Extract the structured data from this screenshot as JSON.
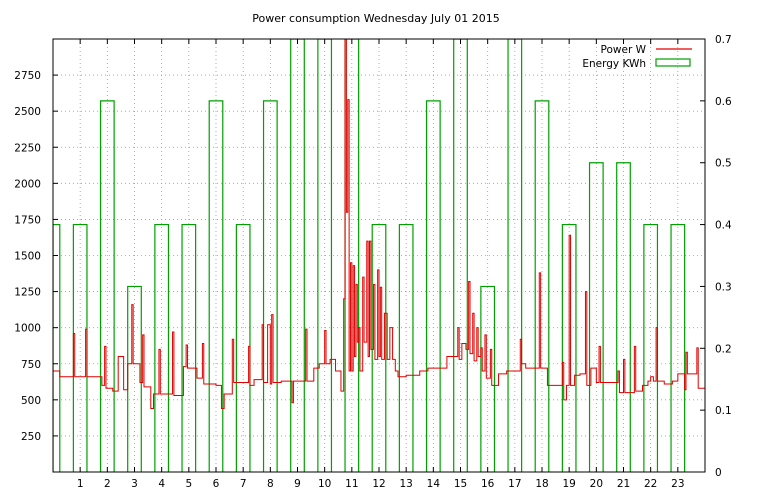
{
  "chart_data": {
    "type": "line",
    "title": "Power consumption Wednesday July 01 2015",
    "grid": true,
    "legend_position": "top-right",
    "x": {
      "range": [
        0,
        24
      ],
      "tick_values": [
        1,
        2,
        3,
        4,
        5,
        6,
        7,
        8,
        9,
        10,
        11,
        12,
        13,
        14,
        15,
        16,
        17,
        18,
        19,
        20,
        21,
        22,
        23
      ],
      "tick_labels": [
        "1",
        "2",
        "3",
        "4",
        "5",
        "6",
        "7",
        "8",
        "9",
        "10",
        "11",
        "12",
        "13",
        "14",
        "15",
        "16",
        "17",
        "18",
        "19",
        "20",
        "21",
        "22",
        "23"
      ]
    },
    "y_left": {
      "range": [
        0,
        3000
      ],
      "tick_values": [
        250,
        500,
        750,
        1000,
        1250,
        1500,
        1750,
        2000,
        2250,
        2500,
        2750
      ],
      "tick_labels": [
        "250",
        "500",
        "750",
        "1000",
        "1250",
        "1500",
        "1750",
        "2000",
        "2250",
        "2500",
        "2750"
      ]
    },
    "y_right": {
      "range": [
        0,
        0.7
      ],
      "tick_values": [
        0,
        0.1,
        0.2,
        0.3,
        0.4,
        0.5,
        0.6,
        0.7
      ],
      "tick_labels": [
        "0",
        "0.1",
        "0.2",
        "0.3",
        "0.4",
        "0.5",
        "0.6",
        "0.7"
      ]
    },
    "series": [
      {
        "name": "Power W",
        "axis": "left",
        "color": "#e00000",
        "style": "step",
        "points": [
          [
            0.0,
            700
          ],
          [
            0.25,
            660
          ],
          [
            0.5,
            660
          ],
          [
            0.75,
            960
          ],
          [
            0.8,
            660
          ],
          [
            1.2,
            990
          ],
          [
            1.25,
            660
          ],
          [
            1.5,
            660
          ],
          [
            1.8,
            600
          ],
          [
            1.9,
            870
          ],
          [
            1.95,
            580
          ],
          [
            2.2,
            560
          ],
          [
            2.4,
            800
          ],
          [
            2.6,
            570
          ],
          [
            2.75,
            750
          ],
          [
            2.9,
            1160
          ],
          [
            2.95,
            750
          ],
          [
            3.2,
            620
          ],
          [
            3.3,
            950
          ],
          [
            3.35,
            590
          ],
          [
            3.6,
            440
          ],
          [
            3.7,
            540
          ],
          [
            3.9,
            850
          ],
          [
            3.95,
            540
          ],
          [
            4.2,
            540
          ],
          [
            4.4,
            970
          ],
          [
            4.45,
            530
          ],
          [
            4.8,
            730
          ],
          [
            4.9,
            880
          ],
          [
            4.95,
            720
          ],
          [
            5.3,
            650
          ],
          [
            5.5,
            890
          ],
          [
            5.55,
            610
          ],
          [
            6.0,
            600
          ],
          [
            6.2,
            440
          ],
          [
            6.3,
            540
          ],
          [
            6.6,
            920
          ],
          [
            6.65,
            620
          ],
          [
            7.0,
            620
          ],
          [
            7.2,
            870
          ],
          [
            7.25,
            600
          ],
          [
            7.4,
            640
          ],
          [
            7.7,
            1020
          ],
          [
            7.75,
            620
          ],
          [
            7.9,
            1020
          ],
          [
            8.0,
            610
          ],
          [
            8.05,
            1090
          ],
          [
            8.1,
            620
          ],
          [
            8.4,
            630
          ],
          [
            8.8,
            480
          ],
          [
            8.85,
            630
          ],
          [
            9.2,
            630
          ],
          [
            9.3,
            990
          ],
          [
            9.35,
            630
          ],
          [
            9.6,
            720
          ],
          [
            9.8,
            750
          ],
          [
            10.0,
            980
          ],
          [
            10.05,
            750
          ],
          [
            10.2,
            780
          ],
          [
            10.4,
            700
          ],
          [
            10.6,
            560
          ],
          [
            10.7,
            1200
          ],
          [
            10.75,
            3000
          ],
          [
            10.8,
            1800
          ],
          [
            10.85,
            2580
          ],
          [
            10.9,
            700
          ],
          [
            10.95,
            1450
          ],
          [
            11.0,
            700
          ],
          [
            11.05,
            1430
          ],
          [
            11.1,
            800
          ],
          [
            11.15,
            1300
          ],
          [
            11.2,
            900
          ],
          [
            11.25,
            1000
          ],
          [
            11.3,
            700
          ],
          [
            11.4,
            1350
          ],
          [
            11.45,
            900
          ],
          [
            11.55,
            1600
          ],
          [
            11.6,
            800
          ],
          [
            11.65,
            1600
          ],
          [
            11.7,
            850
          ],
          [
            11.8,
            1300
          ],
          [
            11.85,
            780
          ],
          [
            11.95,
            1400
          ],
          [
            12.0,
            800
          ],
          [
            12.05,
            1280
          ],
          [
            12.1,
            780
          ],
          [
            12.2,
            1100
          ],
          [
            12.3,
            780
          ],
          [
            12.4,
            1000
          ],
          [
            12.5,
            780
          ],
          [
            12.6,
            700
          ],
          [
            12.7,
            660
          ],
          [
            13.0,
            670
          ],
          [
            13.2,
            670
          ],
          [
            13.5,
            700
          ],
          [
            13.8,
            720
          ],
          [
            14.0,
            720
          ],
          [
            14.3,
            720
          ],
          [
            14.5,
            800
          ],
          [
            14.7,
            800
          ],
          [
            14.9,
            1000
          ],
          [
            14.95,
            780
          ],
          [
            15.05,
            890
          ],
          [
            15.2,
            850
          ],
          [
            15.3,
            1320
          ],
          [
            15.35,
            820
          ],
          [
            15.45,
            1100
          ],
          [
            15.5,
            770
          ],
          [
            15.6,
            1000
          ],
          [
            15.65,
            800
          ],
          [
            15.75,
            860
          ],
          [
            15.8,
            700
          ],
          [
            15.9,
            950
          ],
          [
            15.95,
            650
          ],
          [
            16.1,
            850
          ],
          [
            16.15,
            600
          ],
          [
            16.4,
            680
          ],
          [
            16.7,
            700
          ],
          [
            17.0,
            700
          ],
          [
            17.2,
            920
          ],
          [
            17.25,
            750
          ],
          [
            17.4,
            720
          ],
          [
            17.7,
            720
          ],
          [
            17.9,
            1380
          ],
          [
            17.95,
            720
          ],
          [
            18.2,
            600
          ],
          [
            18.6,
            600
          ],
          [
            18.75,
            760
          ],
          [
            18.8,
            500
          ],
          [
            18.9,
            600
          ],
          [
            19.0,
            1640
          ],
          [
            19.05,
            600
          ],
          [
            19.2,
            670
          ],
          [
            19.4,
            680
          ],
          [
            19.6,
            1250
          ],
          [
            19.65,
            600
          ],
          [
            19.8,
            720
          ],
          [
            20.0,
            620
          ],
          [
            20.1,
            870
          ],
          [
            20.15,
            620
          ],
          [
            20.5,
            620
          ],
          [
            20.8,
            700
          ],
          [
            20.85,
            550
          ],
          [
            21.0,
            780
          ],
          [
            21.05,
            550
          ],
          [
            21.2,
            550
          ],
          [
            21.4,
            870
          ],
          [
            21.45,
            560
          ],
          [
            21.7,
            600
          ],
          [
            21.9,
            630
          ],
          [
            22.0,
            660
          ],
          [
            22.1,
            630
          ],
          [
            22.2,
            1000
          ],
          [
            22.25,
            630
          ],
          [
            22.5,
            610
          ],
          [
            22.8,
            630
          ],
          [
            23.0,
            680
          ],
          [
            23.2,
            680
          ],
          [
            23.25,
            570
          ],
          [
            23.3,
            830
          ],
          [
            23.35,
            680
          ],
          [
            23.6,
            680
          ],
          [
            23.7,
            860
          ],
          [
            23.75,
            580
          ],
          [
            24.0,
            580
          ]
        ]
      },
      {
        "name": "Energy KWh",
        "axis": "right",
        "color": "#00a000",
        "style": "impulse-bar",
        "hours": [
          0,
          1,
          2,
          3,
          4,
          5,
          6,
          7,
          8,
          9,
          10,
          11,
          12,
          13,
          14,
          15,
          16,
          17,
          18,
          19,
          20,
          21,
          22,
          23
        ],
        "values": [
          0.4,
          0.4,
          0.6,
          0.3,
          0.4,
          0.4,
          0.6,
          0.4,
          0.6,
          0.7,
          0.7,
          0.7,
          0.4,
          0.4,
          0.6,
          0.7,
          0.3,
          0.7,
          0.6,
          0.4,
          0.5,
          0.5,
          0.4,
          0.4
        ]
      }
    ]
  }
}
